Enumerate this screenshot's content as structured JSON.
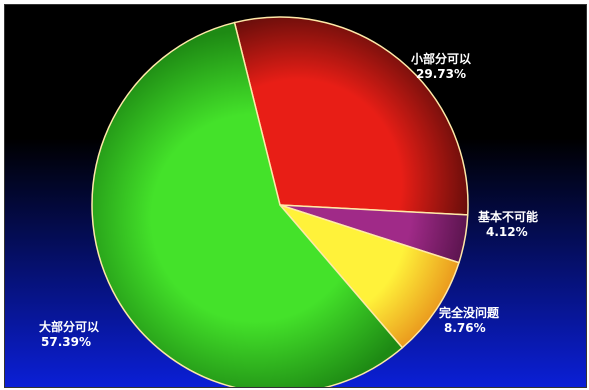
{
  "chart_data": {
    "type": "pie",
    "title": "",
    "start_angle_deg": -104,
    "slices": [
      {
        "label": "小部分可以",
        "value": 29.73,
        "value_text": "29.73%",
        "color": "#e81e16",
        "color_dark": "#4a0a08"
      },
      {
        "label": "基本不可能",
        "value": 4.12,
        "value_text": "4.12%",
        "color": "#a02a88",
        "color_dark": "#3a0a33"
      },
      {
        "label": "完全没问题",
        "value": 8.76,
        "value_text": "8.76%",
        "color": "#fff23a",
        "color_dark": "#e07010"
      },
      {
        "label": "大部分可以",
        "value": 57.39,
        "value_text": "57.39%",
        "color": "#44e22a",
        "color_dark": "#1e8a14"
      }
    ],
    "background": {
      "top": "#000000",
      "bottom": "#0b1fd6"
    },
    "edge_color": "#ffe9a8"
  }
}
